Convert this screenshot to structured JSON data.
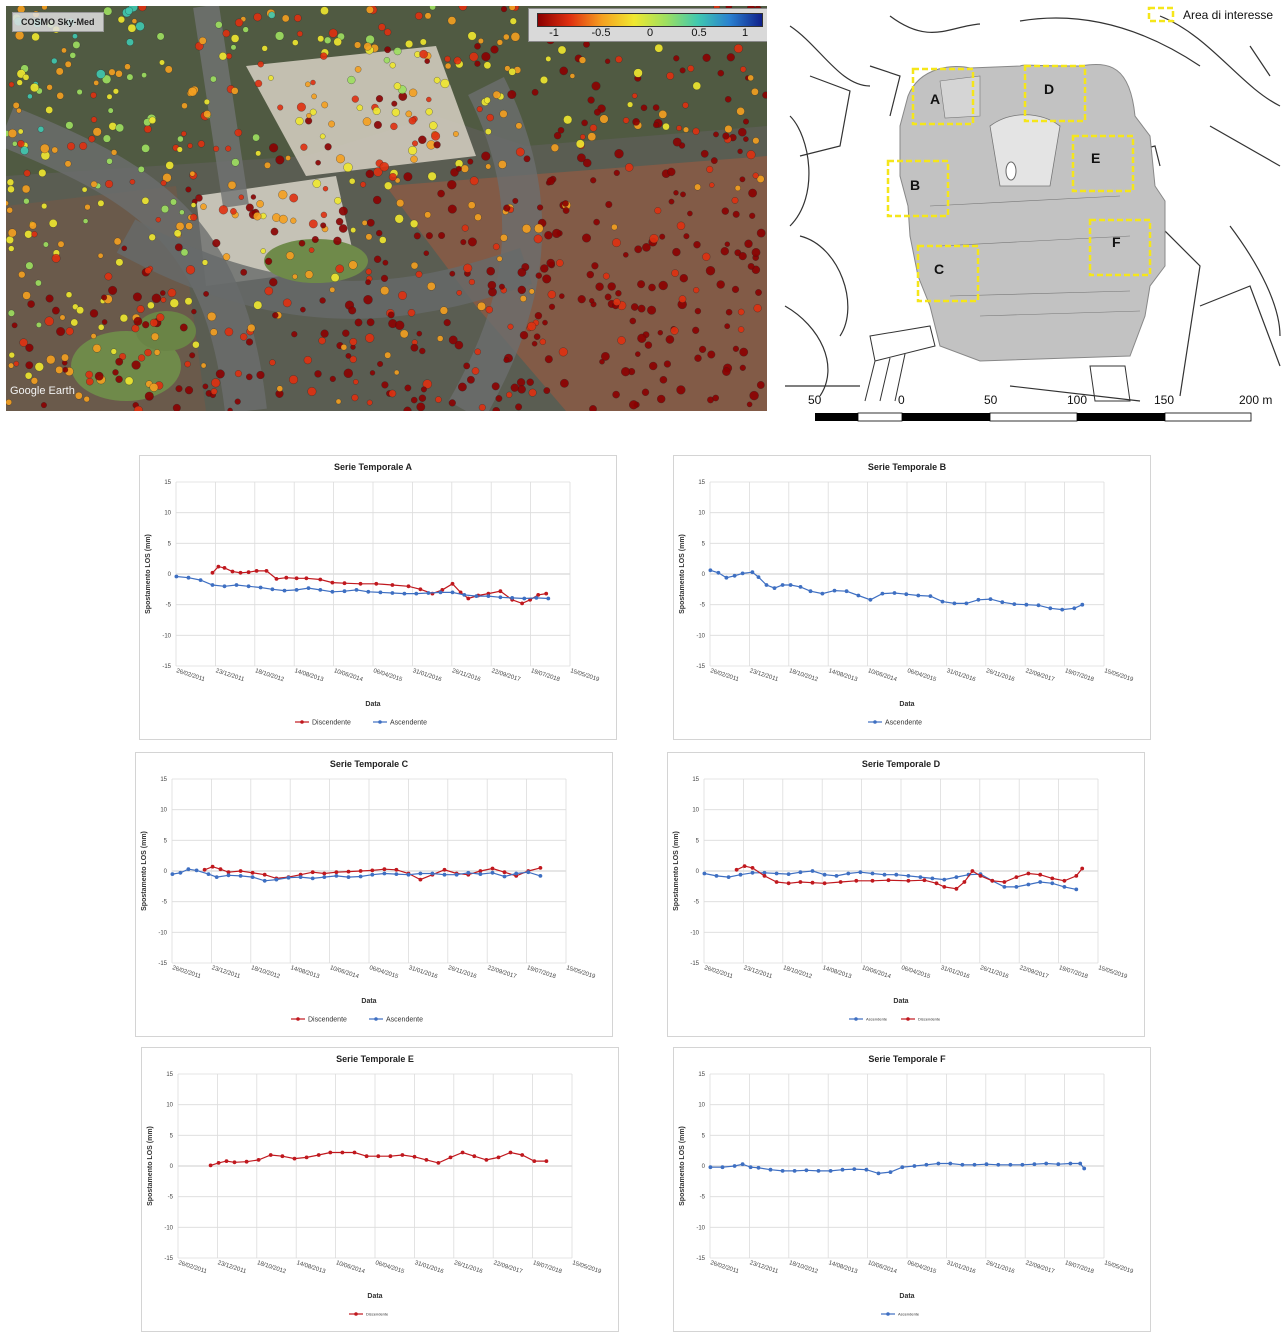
{
  "aerial": {
    "source_label": "COSMO Sky-Med",
    "credit": "Google Earth",
    "colorbar": {
      "ticks": [
        "-1",
        "-0.5",
        "0",
        "0.5",
        "1"
      ],
      "colors": [
        "#8b0000",
        "#e03010",
        "#f5a020",
        "#f0e830",
        "#9ee060",
        "#40c8b0",
        "#2a80d0",
        "#10208a"
      ]
    }
  },
  "map": {
    "legend_label": "Area di interesse",
    "highlight_color": "#f5e61a",
    "building_color": "#c2c2c2",
    "areas": [
      "A",
      "B",
      "C",
      "D",
      "E",
      "F"
    ],
    "scale_labels": [
      "50",
      "0",
      "50",
      "100",
      "150",
      "200 m"
    ]
  },
  "colors": {
    "discendente": "#c0181e",
    "ascendente": "#3e6fc2"
  },
  "chart_data": [
    {
      "type": "line",
      "title": "Serie Temporale A",
      "xlabel": "Data",
      "ylabel": "Spostamento LOS (mm)",
      "ylim": [
        -15,
        15
      ],
      "yticks": [
        "15",
        "10",
        "5",
        "0",
        "-5",
        "-10",
        "-15"
      ],
      "xlim": [
        "2011-02-26",
        "2019-05-15"
      ],
      "xticks": [
        "26/02/2011",
        "23/12/2011",
        "18/10/2012",
        "14/08/2013",
        "10/06/2014",
        "06/04/2015",
        "31/01/2016",
        "26/11/2016",
        "22/09/2017",
        "19/07/2018",
        "15/05/2019"
      ],
      "legend_small": false,
      "legend": [
        "Discendente",
        "Ascendente"
      ],
      "series": [
        {
          "name": "Discendente",
          "color": "#c0181e",
          "x": [
            "2011-12-01",
            "2012-01-15",
            "2012-03-01",
            "2012-05-01",
            "2012-07-01",
            "2012-09-01",
            "2012-11-01",
            "2013-01-15",
            "2013-04-01",
            "2013-06-15",
            "2013-09-01",
            "2013-11-15",
            "2014-03-01",
            "2014-06-01",
            "2014-09-01",
            "2015-01-01",
            "2015-05-01",
            "2015-09-01",
            "2016-01-01",
            "2016-04-01",
            "2016-07-01",
            "2016-09-15",
            "2016-12-01",
            "2017-02-01",
            "2017-04-01",
            "2017-06-15",
            "2017-09-01",
            "2017-12-01",
            "2018-03-01",
            "2018-05-15",
            "2018-07-15",
            "2018-09-15",
            "2018-11-15"
          ],
          "y": [
            0.2,
            1.2,
            1.0,
            0.4,
            0.2,
            0.3,
            0.5,
            0.5,
            -0.8,
            -0.6,
            -0.7,
            -0.7,
            -0.9,
            -1.4,
            -1.5,
            -1.6,
            -1.6,
            -1.8,
            -2.0,
            -2.5,
            -3.2,
            -2.6,
            -1.6,
            -3.0,
            -4.0,
            -3.5,
            -3.2,
            -2.8,
            -4.2,
            -4.8,
            -4.2,
            -3.4,
            -3.2
          ]
        },
        {
          "name": "Ascendente",
          "color": "#3e6fc2",
          "x": [
            "2011-03-01",
            "2011-06-01",
            "2011-09-01",
            "2011-12-01",
            "2012-03-01",
            "2012-06-01",
            "2012-09-01",
            "2012-12-01",
            "2013-03-01",
            "2013-06-01",
            "2013-09-01",
            "2013-12-01",
            "2014-03-01",
            "2014-06-01",
            "2014-09-01",
            "2014-12-01",
            "2015-03-01",
            "2015-06-01",
            "2015-09-01",
            "2015-12-01",
            "2016-03-01",
            "2016-06-01",
            "2016-09-01",
            "2016-12-01",
            "2017-03-01",
            "2017-06-01",
            "2017-09-01",
            "2017-12-01",
            "2018-03-01",
            "2018-06-01",
            "2018-09-01",
            "2018-12-01"
          ],
          "y": [
            -0.4,
            -0.6,
            -1.0,
            -1.8,
            -2.0,
            -1.8,
            -2.0,
            -2.2,
            -2.5,
            -2.7,
            -2.6,
            -2.3,
            -2.6,
            -2.9,
            -2.8,
            -2.6,
            -2.9,
            -3.0,
            -3.1,
            -3.2,
            -3.2,
            -3.1,
            -3.0,
            -3.0,
            -3.4,
            -3.6,
            -3.6,
            -3.8,
            -3.9,
            -4.0,
            -3.9,
            -4.0
          ]
        }
      ]
    },
    {
      "type": "line",
      "title": "Serie Temporale B",
      "xlabel": "Data",
      "ylabel": "Spostamento LOS (mm)",
      "ylim": [
        -15,
        15
      ],
      "yticks": [
        "15",
        "10",
        "5",
        "0",
        "-5",
        "-10",
        "-15"
      ],
      "xlim": [
        "2011-02-26",
        "2019-05-15"
      ],
      "xticks": [
        "26/02/2011",
        "23/12/2011",
        "18/10/2012",
        "14/08/2013",
        "10/06/2014",
        "06/04/2015",
        "31/01/2016",
        "26/11/2016",
        "22/09/2017",
        "19/07/2018",
        "15/05/2019"
      ],
      "legend_small": false,
      "legend": [
        "Ascendente"
      ],
      "series": [
        {
          "name": "Ascendente",
          "color": "#3e6fc2",
          "x": [
            "2011-03-01",
            "2011-05-01",
            "2011-07-01",
            "2011-09-01",
            "2011-11-01",
            "2012-01-15",
            "2012-03-01",
            "2012-05-01",
            "2012-07-01",
            "2012-09-01",
            "2012-11-01",
            "2013-01-15",
            "2013-04-01",
            "2013-07-01",
            "2013-10-01",
            "2014-01-01",
            "2014-04-01",
            "2014-07-01",
            "2014-10-01",
            "2015-01-01",
            "2015-04-01",
            "2015-07-01",
            "2015-10-01",
            "2016-01-01",
            "2016-04-01",
            "2016-07-01",
            "2016-10-01",
            "2017-01-01",
            "2017-04-01",
            "2017-07-01",
            "2017-10-01",
            "2018-01-01",
            "2018-04-01",
            "2018-07-01",
            "2018-10-01",
            "2018-12-01"
          ],
          "y": [
            0.6,
            0.2,
            -0.6,
            -0.3,
            0.1,
            0.3,
            -0.5,
            -1.8,
            -2.3,
            -1.8,
            -1.8,
            -2.1,
            -2.8,
            -3.2,
            -2.7,
            -2.8,
            -3.5,
            -4.2,
            -3.2,
            -3.1,
            -3.3,
            -3.5,
            -3.6,
            -4.5,
            -4.8,
            -4.8,
            -4.2,
            -4.1,
            -4.6,
            -4.9,
            -5.0,
            -5.1,
            -5.6,
            -5.8,
            -5.6,
            -5.0
          ]
        }
      ]
    },
    {
      "type": "line",
      "title": "Serie Temporale C",
      "xlabel": "Data",
      "ylabel": "Spostamento LOS (mm)",
      "ylim": [
        -15,
        15
      ],
      "yticks": [
        "15",
        "10",
        "5",
        "0",
        "-5",
        "-10",
        "-15"
      ],
      "xlim": [
        "2011-02-26",
        "2019-05-15"
      ],
      "xticks": [
        "26/02/2011",
        "23/12/2011",
        "18/10/2012",
        "14/08/2013",
        "10/06/2014",
        "06/04/2015",
        "31/01/2016",
        "26/11/2016",
        "22/09/2017",
        "19/07/2018",
        "15/05/2019"
      ],
      "legend_small": false,
      "legend": [
        "Discendente",
        "Ascendente"
      ],
      "series": [
        {
          "name": "Discendente",
          "color": "#c0181e",
          "x": [
            "2011-11-01",
            "2012-01-01",
            "2012-03-01",
            "2012-05-01",
            "2012-08-01",
            "2012-11-01",
            "2013-02-01",
            "2013-05-01",
            "2013-08-01",
            "2013-11-01",
            "2014-02-01",
            "2014-05-01",
            "2014-08-01",
            "2014-11-01",
            "2015-02-01",
            "2015-05-01",
            "2015-08-01",
            "2015-11-01",
            "2016-02-01",
            "2016-05-01",
            "2016-08-01",
            "2016-11-01",
            "2017-02-01",
            "2017-05-01",
            "2017-08-01",
            "2017-11-01",
            "2018-02-01",
            "2018-05-01",
            "2018-08-01",
            "2018-11-01"
          ],
          "y": [
            0.2,
            0.7,
            0.3,
            -0.2,
            0.0,
            -0.3,
            -0.6,
            -1.2,
            -1.0,
            -0.6,
            -0.2,
            -0.4,
            -0.2,
            -0.1,
            0.0,
            0.1,
            0.3,
            0.2,
            -0.4,
            -1.4,
            -0.6,
            0.2,
            -0.4,
            -0.6,
            0.0,
            0.4,
            -0.2,
            -0.8,
            0.0,
            0.5
          ]
        },
        {
          "name": "Ascendente",
          "color": "#3e6fc2",
          "x": [
            "2011-03-01",
            "2011-05-01",
            "2011-07-01",
            "2011-09-01",
            "2011-12-01",
            "2012-02-01",
            "2012-05-01",
            "2012-08-01",
            "2012-11-01",
            "2013-02-01",
            "2013-05-01",
            "2013-08-01",
            "2013-11-01",
            "2014-02-01",
            "2014-05-01",
            "2014-08-01",
            "2014-11-01",
            "2015-02-01",
            "2015-05-01",
            "2015-08-01",
            "2015-11-01",
            "2016-02-01",
            "2016-05-01",
            "2016-08-01",
            "2016-11-01",
            "2017-02-01",
            "2017-05-01",
            "2017-08-01",
            "2017-11-01",
            "2018-02-01",
            "2018-05-01",
            "2018-08-01",
            "2018-11-01"
          ],
          "y": [
            -0.5,
            -0.3,
            0.3,
            0.1,
            -0.5,
            -1.0,
            -0.7,
            -0.8,
            -1.0,
            -1.6,
            -1.4,
            -1.1,
            -1.0,
            -1.2,
            -1.0,
            -0.8,
            -1.0,
            -0.9,
            -0.6,
            -0.4,
            -0.5,
            -0.6,
            -0.4,
            -0.4,
            -0.6,
            -0.6,
            -0.3,
            -0.5,
            -0.3,
            -0.9,
            -0.4,
            -0.2,
            -0.8
          ]
        }
      ]
    },
    {
      "type": "line",
      "title": "Serie Temporale D",
      "xlabel": "Data",
      "ylabel": "Spostamento LOS (mm)",
      "ylim": [
        -15,
        15
      ],
      "yticks": [
        "15",
        "10",
        "5",
        "0",
        "-5",
        "-10",
        "-15"
      ],
      "xlim": [
        "2011-02-26",
        "2019-05-15"
      ],
      "xticks": [
        "26/02/2011",
        "23/12/2011",
        "18/10/2012",
        "14/08/2013",
        "10/06/2014",
        "06/04/2015",
        "31/01/2016",
        "26/11/2016",
        "22/09/2017",
        "19/07/2018",
        "15/05/2019"
      ],
      "legend_small": true,
      "legend": [
        "Ascendente",
        "Discendente"
      ],
      "series": [
        {
          "name": "Ascendente",
          "color": "#3e6fc2",
          "x": [
            "2011-03-01",
            "2011-06-01",
            "2011-09-01",
            "2011-12-01",
            "2012-03-01",
            "2012-06-01",
            "2012-09-01",
            "2012-12-01",
            "2013-03-01",
            "2013-06-01",
            "2013-09-01",
            "2013-12-01",
            "2014-03-01",
            "2014-06-01",
            "2014-09-01",
            "2014-12-01",
            "2015-03-01",
            "2015-06-01",
            "2015-09-01",
            "2015-12-01",
            "2016-03-01",
            "2016-06-01",
            "2016-09-01",
            "2016-12-01",
            "2017-03-01",
            "2017-06-01",
            "2017-09-01",
            "2017-12-01",
            "2018-03-01",
            "2018-06-01",
            "2018-09-01",
            "2018-12-01"
          ],
          "y": [
            -0.4,
            -0.8,
            -1.0,
            -0.6,
            -0.3,
            -0.3,
            -0.4,
            -0.5,
            -0.2,
            0.0,
            -0.6,
            -0.8,
            -0.4,
            -0.2,
            -0.4,
            -0.6,
            -0.6,
            -0.8,
            -1.0,
            -1.2,
            -1.4,
            -1.0,
            -0.6,
            -0.5,
            -1.6,
            -2.6,
            -2.6,
            -2.2,
            -1.8,
            -2.0,
            -2.6,
            -3.0
          ]
        },
        {
          "name": "Discendente",
          "color": "#c0181e",
          "x": [
            "2011-11-01",
            "2012-01-01",
            "2012-03-01",
            "2012-06-01",
            "2012-09-01",
            "2012-12-01",
            "2013-03-01",
            "2013-06-01",
            "2013-09-01",
            "2014-01-01",
            "2014-05-01",
            "2014-09-01",
            "2015-01-01",
            "2015-06-01",
            "2015-10-01",
            "2016-01-01",
            "2016-03-01",
            "2016-06-01",
            "2016-08-01",
            "2016-10-01",
            "2016-12-01",
            "2017-03-01",
            "2017-06-01",
            "2017-09-01",
            "2017-12-01",
            "2018-03-01",
            "2018-06-01",
            "2018-09-01",
            "2018-12-01",
            "2019-01-15"
          ],
          "y": [
            0.2,
            0.8,
            0.5,
            -0.8,
            -1.8,
            -2.0,
            -1.8,
            -1.9,
            -2.0,
            -1.8,
            -1.6,
            -1.6,
            -1.5,
            -1.6,
            -1.5,
            -2.0,
            -2.6,
            -2.9,
            -1.8,
            0.0,
            -0.8,
            -1.6,
            -1.8,
            -1.0,
            -0.4,
            -0.6,
            -1.2,
            -1.6,
            -0.8,
            0.4
          ]
        }
      ]
    },
    {
      "type": "line",
      "title": "Serie Temporale E",
      "xlabel": "Data",
      "ylabel": "Spostamento LOS (mm)",
      "ylim": [
        -15,
        15
      ],
      "yticks": [
        "15",
        "10",
        "5",
        "0",
        "-5",
        "-10",
        "-15"
      ],
      "xlim": [
        "2011-02-26",
        "2019-05-15"
      ],
      "xticks": [
        "26/02/2011",
        "23/12/2011",
        "18/10/2012",
        "14/08/2013",
        "10/06/2014",
        "06/04/2015",
        "31/01/2016",
        "26/11/2016",
        "22/09/2017",
        "19/07/2018",
        "15/05/2019"
      ],
      "legend_small": true,
      "legend": [
        "Discendente"
      ],
      "series": [
        {
          "name": "Discendente",
          "color": "#c0181e",
          "x": [
            "2011-11-01",
            "2012-01-01",
            "2012-03-01",
            "2012-05-01",
            "2012-08-01",
            "2012-11-01",
            "2013-02-01",
            "2013-05-01",
            "2013-08-01",
            "2013-11-01",
            "2014-02-01",
            "2014-05-01",
            "2014-08-01",
            "2014-11-01",
            "2015-02-01",
            "2015-05-01",
            "2015-08-01",
            "2015-11-01",
            "2016-02-01",
            "2016-05-01",
            "2016-08-01",
            "2016-11-01",
            "2017-02-01",
            "2017-05-01",
            "2017-08-01",
            "2017-11-01",
            "2018-02-01",
            "2018-05-01",
            "2018-08-01",
            "2018-11-01"
          ],
          "y": [
            0.1,
            0.5,
            0.8,
            0.6,
            0.7,
            1.0,
            1.8,
            1.6,
            1.2,
            1.4,
            1.8,
            2.2,
            2.2,
            2.2,
            1.6,
            1.6,
            1.6,
            1.8,
            1.5,
            1.0,
            0.5,
            1.4,
            2.2,
            1.6,
            1.0,
            1.4,
            2.2,
            1.8,
            0.8,
            0.8
          ]
        }
      ]
    },
    {
      "type": "line",
      "title": "Serie Temporale F",
      "xlabel": "Data",
      "ylabel": "Spostamento LOS (mm)",
      "ylim": [
        -15,
        15
      ],
      "yticks": [
        "15",
        "10",
        "5",
        "0",
        "-5",
        "-10",
        "-15"
      ],
      "xlim": [
        "2011-02-26",
        "2019-05-15"
      ],
      "xticks": [
        "26/02/2011",
        "23/12/2011",
        "18/10/2012",
        "14/08/2013",
        "10/06/2014",
        "06/04/2015",
        "31/01/2016",
        "26/11/2016",
        "22/09/2017",
        "19/07/2018",
        "15/05/2019"
      ],
      "legend_small": true,
      "legend": [
        "Ascendente"
      ],
      "series": [
        {
          "name": "Ascendente",
          "color": "#3e6fc2",
          "x": [
            "2011-03-01",
            "2011-06-01",
            "2011-09-01",
            "2011-11-01",
            "2012-01-01",
            "2012-03-01",
            "2012-06-01",
            "2012-09-01",
            "2012-12-01",
            "2013-03-01",
            "2013-06-01",
            "2013-09-01",
            "2013-12-01",
            "2014-03-01",
            "2014-06-01",
            "2014-09-01",
            "2014-12-01",
            "2015-03-01",
            "2015-06-01",
            "2015-09-01",
            "2015-12-01",
            "2016-03-01",
            "2016-06-01",
            "2016-09-01",
            "2016-12-01",
            "2017-03-01",
            "2017-06-01",
            "2017-09-01",
            "2017-12-01",
            "2018-03-01",
            "2018-06-01",
            "2018-09-01",
            "2018-11-15",
            "2018-12-15"
          ],
          "y": [
            -0.2,
            -0.2,
            0.0,
            0.3,
            -0.2,
            -0.3,
            -0.6,
            -0.8,
            -0.8,
            -0.7,
            -0.8,
            -0.8,
            -0.6,
            -0.5,
            -0.6,
            -1.2,
            -1.0,
            -0.2,
            0.0,
            0.2,
            0.4,
            0.4,
            0.2,
            0.2,
            0.3,
            0.2,
            0.2,
            0.2,
            0.3,
            0.4,
            0.3,
            0.4,
            0.4,
            -0.4
          ]
        }
      ]
    }
  ]
}
